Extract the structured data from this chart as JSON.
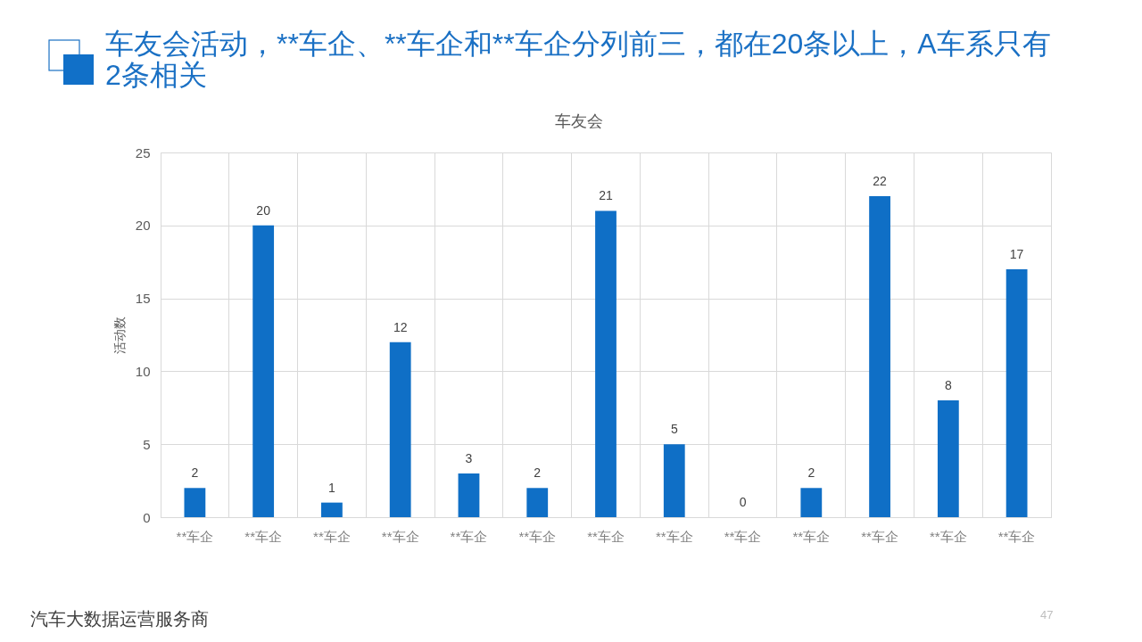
{
  "chart_data": {
    "type": "bar",
    "title": "车友会活动，**车企、**车企和**车企分列前三，都在20条以上，A车系只有2条相关",
    "subtitle": "车友会",
    "ylabel": "活动数",
    "categories": [
      "**车企",
      "**车企",
      "**车企",
      "**车企",
      "**车企",
      "**车企",
      "**车企",
      "**车企",
      "**车企",
      "**车企",
      "**车企",
      "**车企",
      "**车企"
    ],
    "values": [
      2,
      20,
      1,
      12,
      3,
      2,
      21,
      5,
      0,
      2,
      22,
      8,
      17
    ],
    "color": "#0f6fc6",
    "ylim": [
      0,
      25
    ],
    "yticks": [
      0,
      5,
      10,
      15,
      20,
      25
    ],
    "grid": true,
    "data_labels": true,
    "annotations": [
      "汽车大数据运营服务商",
      "47"
    ]
  }
}
